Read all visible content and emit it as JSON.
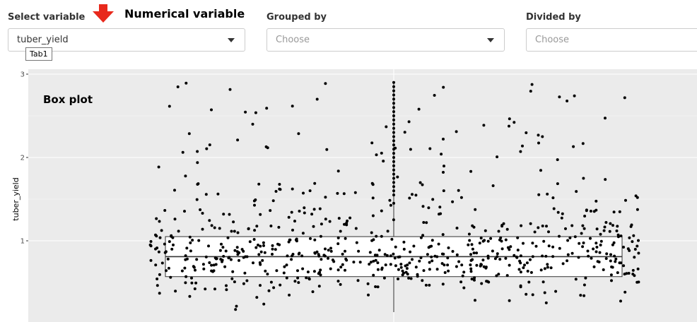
{
  "controls": {
    "select_variable": {
      "label": "Select variable",
      "value": "tuber_yield",
      "tooltip": "Tab1"
    },
    "grouped_by": {
      "label": "Grouped by",
      "placeholder": "Choose"
    },
    "divided_by": {
      "label": "Divided by",
      "placeholder": "Choose"
    }
  },
  "annotation": {
    "text": "Numerical variable",
    "arrow_color": "#e8291c"
  },
  "chart_data": {
    "type": "box",
    "title": "Box plot",
    "ylabel": "tuber_yield",
    "ylim": [
      0.1,
      3.05
    ],
    "yticks": [
      1,
      2,
      3
    ],
    "grid": true,
    "background": "#ebebeb",
    "box": {
      "q1": 0.57,
      "median": 0.81,
      "q3": 1.05,
      "whisker_low": 0.1,
      "whisker_high": 2.9
    },
    "outliers": [
      1.45,
      1.55,
      1.6,
      1.65,
      1.7,
      1.75,
      1.8,
      1.85,
      1.9,
      1.95,
      2.0,
      2.05,
      2.1,
      2.15,
      2.2,
      2.25,
      2.3,
      2.35,
      2.4,
      2.45,
      2.5,
      2.55,
      2.6,
      2.65,
      2.7,
      2.75,
      2.8,
      2.85,
      2.9
    ],
    "point_count": 700
  }
}
